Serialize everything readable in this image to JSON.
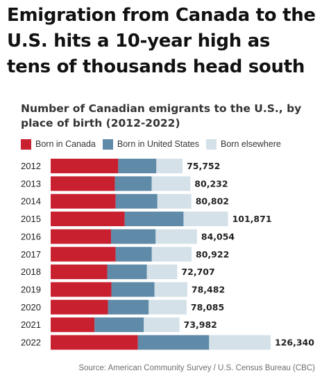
{
  "headline": "Emigration from Canada to the U.S. hits a 10-year high as tens of thousands head south",
  "source": "Source: American Community Survey / U.S. Census Bureau (CBC)",
  "chart_data": {
    "type": "bar",
    "orientation": "horizontal",
    "stacked": true,
    "title": "Number of Canadian emigrants to the U.S., by place of birth (2012-2022)",
    "legend_position": "top-left",
    "grid": false,
    "categories": [
      "2012",
      "2013",
      "2014",
      "2015",
      "2016",
      "2017",
      "2018",
      "2019",
      "2020",
      "2021",
      "2022"
    ],
    "totals_labels": [
      "75,752",
      "80,232",
      "80,802",
      "101,871",
      "84,054",
      "80,922",
      "72,707",
      "78,482",
      "78,085",
      "73,982",
      "126,340"
    ],
    "series": [
      {
        "name": "Born in Canada",
        "color": "#c8202f",
        "values": [
          38800,
          36900,
          37300,
          42500,
          34700,
          37300,
          32500,
          34900,
          32900,
          25200,
          50100
        ]
      },
      {
        "name": "Born in United States",
        "color": "#5f8aa8",
        "values": [
          21900,
          21100,
          24000,
          33800,
          25600,
          20800,
          22700,
          24700,
          23400,
          28300,
          40900
        ]
      },
      {
        "name": "Born elsewhere",
        "color": "#d4e1e8",
        "values": [
          15052,
          22232,
          19502,
          25571,
          23754,
          22822,
          17507,
          18882,
          21785,
          20482,
          35340
        ]
      }
    ]
  }
}
